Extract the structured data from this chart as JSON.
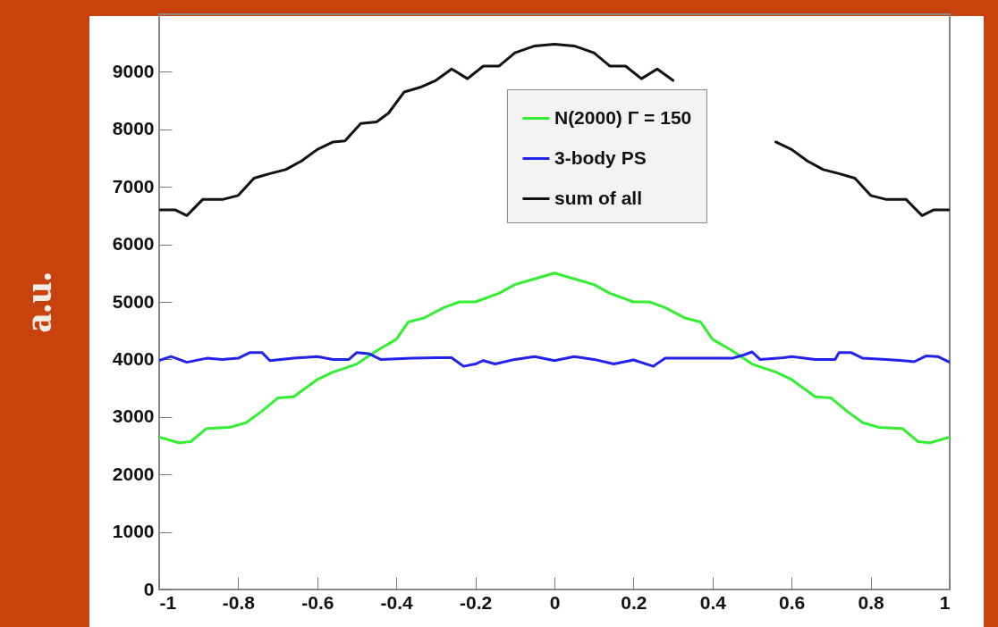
{
  "chart_data": {
    "type": "line",
    "ylabel": "a.u.",
    "xlim": [
      -1,
      1
    ],
    "xticks": [
      -1,
      -0.8,
      -0.6,
      -0.4,
      -0.2,
      0,
      0.2,
      0.4,
      0.6,
      0.8,
      1
    ],
    "ylim": [
      0,
      10000
    ],
    "yticks": [
      0,
      1000,
      2000,
      3000,
      4000,
      5000,
      6000,
      7000,
      8000,
      9000
    ],
    "grid": false,
    "legend": "top right",
    "line_style": "solid",
    "series": [
      {
        "name": "N(2000) Γ = 150",
        "color": "#33ee33",
        "x": [
          -1,
          -0.95,
          -0.92,
          -0.88,
          -0.82,
          -0.78,
          -0.74,
          -0.7,
          -0.66,
          -0.6,
          -0.56,
          -0.5,
          -0.45,
          -0.4,
          -0.37,
          -0.33,
          -0.28,
          -0.24,
          -0.2,
          -0.14,
          -0.1,
          -0.06,
          0,
          0.06,
          0.1,
          0.14,
          0.2,
          0.24,
          0.28,
          0.33,
          0.37,
          0.4,
          0.45,
          0.5,
          0.56,
          0.6,
          0.66,
          0.7,
          0.74,
          0.78,
          0.82,
          0.88,
          0.92,
          0.95,
          1
        ],
        "values": [
          2650,
          2550,
          2570,
          2800,
          2820,
          2900,
          3100,
          3330,
          3350,
          3650,
          3780,
          3920,
          4150,
          4350,
          4650,
          4720,
          4900,
          5000,
          5000,
          5150,
          5300,
          5380,
          5500,
          5380,
          5300,
          5150,
          5000,
          5000,
          4900,
          4720,
          4650,
          4350,
          4150,
          3920,
          3780,
          3650,
          3350,
          3330,
          3100,
          2900,
          2820,
          2800,
          2570,
          2550,
          2650
        ]
      },
      {
        "name": "3-body PS",
        "color": "#2222ee",
        "x": [
          -1,
          -0.97,
          -0.93,
          -0.88,
          -0.84,
          -0.8,
          -0.77,
          -0.74,
          -0.72,
          -0.66,
          -0.6,
          -0.56,
          -0.52,
          -0.5,
          -0.47,
          -0.44,
          -0.36,
          -0.3,
          -0.26,
          -0.23,
          -0.2,
          -0.18,
          -0.15,
          -0.1,
          -0.05,
          0,
          0.05,
          0.1,
          0.15,
          0.2,
          0.25,
          0.28,
          0.4,
          0.45,
          0.48,
          0.5,
          0.52,
          0.58,
          0.6,
          0.66,
          0.71,
          0.72,
          0.75,
          0.78,
          0.84,
          0.88,
          0.91,
          0.94,
          0.97,
          1
        ],
        "values": [
          3980,
          4050,
          3950,
          4020,
          4000,
          4020,
          4120,
          4120,
          3980,
          4020,
          4050,
          4000,
          4000,
          4120,
          4100,
          4000,
          4020,
          4030,
          4030,
          3880,
          3920,
          3980,
          3920,
          4000,
          4050,
          3980,
          4050,
          4000,
          3920,
          3990,
          3880,
          4020,
          4020,
          4020,
          4080,
          4130,
          4000,
          4030,
          4050,
          4000,
          4000,
          4120,
          4120,
          4020,
          4000,
          3980,
          3960,
          4060,
          4050,
          3950
        ]
      },
      {
        "name": "sum of all",
        "color": "#111111",
        "x": [
          -1,
          -0.96,
          -0.93,
          -0.89,
          -0.84,
          -0.8,
          -0.76,
          -0.72,
          -0.68,
          -0.64,
          -0.6,
          -0.56,
          -0.53,
          -0.49,
          -0.45,
          -0.42,
          -0.38,
          -0.34,
          -0.3,
          -0.26,
          -0.22,
          -0.18,
          -0.14,
          -0.1,
          -0.05,
          0,
          0.05,
          0.1,
          0.14,
          0.18,
          0.22,
          0.26,
          0.3,
          0.34,
          0.38,
          0.42,
          0.45,
          0.49,
          0.53,
          0.56,
          0.6,
          0.64,
          0.68,
          0.72,
          0.76,
          0.8,
          0.84,
          0.89,
          0.93,
          0.96,
          1
        ],
        "values": [
          6600,
          6600,
          6500,
          6780,
          6780,
          6850,
          7150,
          7230,
          7300,
          7450,
          7650,
          7780,
          7800,
          8100,
          8130,
          8280,
          8650,
          8730,
          8850,
          9050,
          8880,
          9100,
          9100,
          9330,
          9450,
          9480,
          9450,
          9330,
          9100,
          9100,
          8880,
          9050,
          8850,
          null,
          null,
          null,
          null,
          null,
          null,
          7780,
          7650,
          7450,
          7300,
          7230,
          7150,
          6850,
          6780,
          6780,
          6500,
          6600,
          6600
        ]
      }
    ]
  }
}
